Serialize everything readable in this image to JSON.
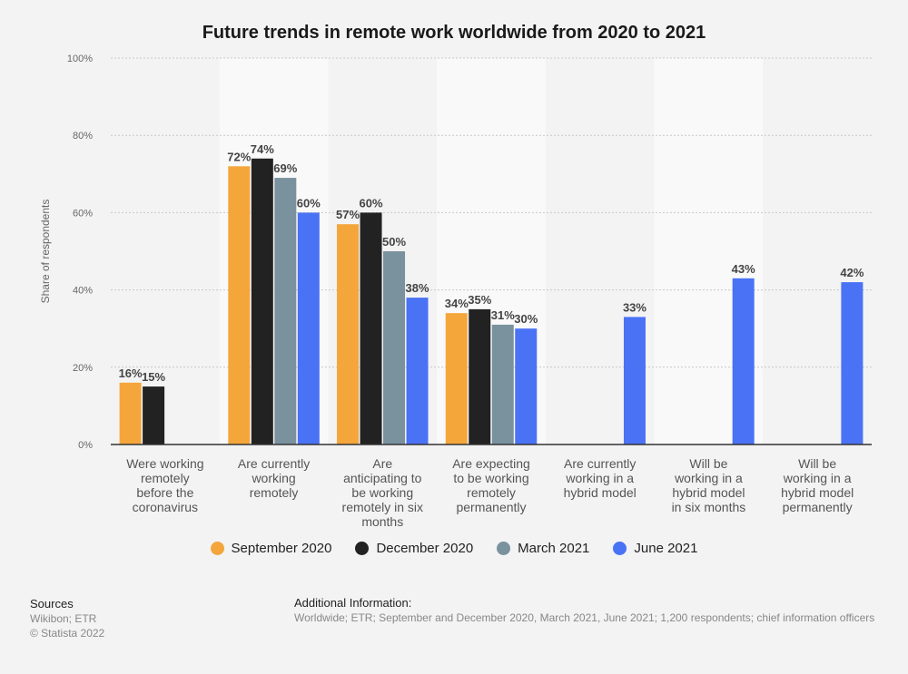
{
  "chart_data": {
    "type": "bar",
    "title": "Future trends in remote work worldwide from 2020 to 2021",
    "ylabel": "Share of respondents",
    "xlabel": "",
    "ylim": [
      0,
      100
    ],
    "yticks": [
      0,
      20,
      40,
      60,
      80,
      100
    ],
    "ytick_labels": [
      "0%",
      "20%",
      "40%",
      "60%",
      "80%",
      "100%"
    ],
    "categories": [
      [
        "Were working",
        "remotely",
        "before the",
        "coronavirus"
      ],
      [
        "Are currently",
        "working",
        "remotely"
      ],
      [
        "Are",
        "anticipating to",
        "be working",
        "remotely in six",
        "months"
      ],
      [
        "Are expecting",
        "to be working",
        "remotely",
        "permanently"
      ],
      [
        "Are currently",
        "working in a",
        "hybrid model"
      ],
      [
        "Will be",
        "working in a",
        "hybrid model",
        "in six months"
      ],
      [
        "Will be",
        "working in a",
        "hybrid model",
        "permanently"
      ]
    ],
    "series": [
      {
        "name": "September 2020",
        "color": "#f4a63b",
        "values": [
          16,
          72,
          57,
          34,
          null,
          null,
          null
        ],
        "labels": [
          "16%",
          "72%",
          "57%",
          "34%",
          null,
          null,
          null
        ]
      },
      {
        "name": "December 2020",
        "color": "#222222",
        "values": [
          15,
          74,
          60,
          35,
          null,
          null,
          null
        ],
        "labels": [
          "15%",
          "74%",
          "60%",
          "35%",
          null,
          null,
          null
        ]
      },
      {
        "name": "March 2021",
        "color": "#7a919e",
        "values": [
          null,
          69,
          50,
          31,
          null,
          null,
          null
        ],
        "labels": [
          null,
          "69%",
          "50%",
          "31%",
          null,
          null,
          null
        ]
      },
      {
        "name": "June 2021",
        "color": "#4a72f5",
        "values": [
          null,
          60,
          38,
          30,
          33,
          43,
          42
        ],
        "labels": [
          null,
          "60%",
          "38%",
          "30%",
          "33%",
          "43%",
          "42%"
        ]
      }
    ],
    "legend_position": "bottom",
    "grid": true
  },
  "sources": {
    "heading": "Sources",
    "line1": "Wikibon; ETR",
    "line2": "© Statista 2022"
  },
  "additional_info": {
    "heading": "Additional Information:",
    "text": "Worldwide; ETR; September and December 2020, March 2021, June 2021; 1,200 respondents; chief information officers"
  }
}
